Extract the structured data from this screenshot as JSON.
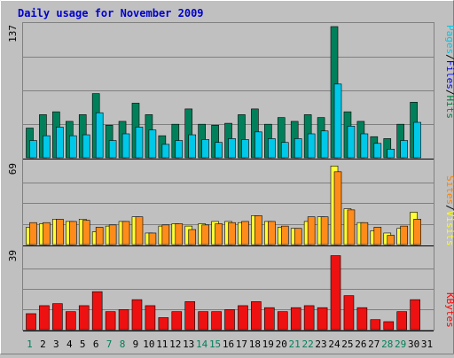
{
  "title": "Daily usage for November 2009",
  "colors": {
    "background": "#c0c0c0",
    "border_light": "#ffffff",
    "border_dark": "#808080",
    "grid": "#808080",
    "title": "#0000cc",
    "hits": "#008040",
    "hits_fill": "#00805a",
    "files": "#0000ff",
    "files_fill": "#00c8e8",
    "pages": "#00c8e8",
    "visits": "#ffff00",
    "visits_fill": "#ffff33",
    "sites": "#ff8000",
    "sites_fill": "#ff8c1a",
    "kbytes": "#ff0000",
    "kbytes_fill": "#ee1111",
    "separator": "#000000",
    "weekend_day": "#00805a",
    "weekday": "#000000"
  },
  "chart_data": [
    {
      "type": "bar",
      "name": "hits-files-pages",
      "ymax_label": "137",
      "ylim": [
        0,
        137
      ],
      "categories": [
        "1",
        "2",
        "3",
        "4",
        "5",
        "6",
        "7",
        "8",
        "9",
        "10",
        "11",
        "12",
        "13",
        "14",
        "15",
        "16",
        "17",
        "18",
        "19",
        "20",
        "21",
        "22",
        "23",
        "24",
        "25",
        "26",
        "27",
        "28",
        "29",
        "30",
        "31"
      ],
      "legend": [
        "Pages",
        "Files",
        "Hits"
      ],
      "series": [
        {
          "name": "Hits",
          "values": [
            31,
            45,
            48,
            38,
            45,
            67,
            34,
            38,
            57,
            45,
            23,
            35,
            51,
            35,
            34,
            36,
            45,
            51,
            35,
            42,
            38,
            45,
            42,
            137,
            48,
            38,
            22,
            20,
            35,
            58,
            0
          ]
        },
        {
          "name": "Files",
          "values": [
            18,
            23,
            32,
            23,
            24,
            47,
            18,
            25,
            32,
            29,
            14,
            18,
            24,
            19,
            16,
            20,
            19,
            27,
            20,
            16,
            20,
            25,
            28,
            77,
            33,
            25,
            15,
            9,
            18,
            37,
            0
          ]
        }
      ]
    },
    {
      "type": "bar",
      "name": "visits-sites",
      "ymax_label": "69",
      "ylim": [
        0,
        69
      ],
      "categories": [
        "1",
        "2",
        "3",
        "4",
        "5",
        "6",
        "7",
        "8",
        "9",
        "10",
        "11",
        "12",
        "13",
        "14",
        "15",
        "16",
        "17",
        "18",
        "19",
        "20",
        "21",
        "22",
        "23",
        "24",
        "25",
        "26",
        "27",
        "28",
        "29",
        "30",
        "31"
      ],
      "legend": [
        "Sites",
        "Visits"
      ],
      "series": [
        {
          "name": "Visits",
          "values": [
            15,
            18,
            22,
            20,
            22,
            11,
            16,
            20,
            24,
            10,
            16,
            18,
            16,
            18,
            20,
            20,
            19,
            25,
            20,
            15,
            14,
            20,
            24,
            68,
            31,
            19,
            12,
            10,
            14,
            28,
            0
          ]
        },
        {
          "name": "Sites",
          "values": [
            19,
            19,
            22,
            20,
            21,
            15,
            17,
            20,
            24,
            10,
            17,
            18,
            13,
            17,
            18,
            19,
            20,
            25,
            20,
            16,
            14,
            24,
            24,
            63,
            30,
            19,
            15,
            8,
            16,
            22,
            0
          ]
        }
      ]
    },
    {
      "type": "bar",
      "name": "kbytes",
      "ymax_label": "39",
      "ylim": [
        0,
        39
      ],
      "categories": [
        "1",
        "2",
        "3",
        "4",
        "5",
        "6",
        "7",
        "8",
        "9",
        "10",
        "11",
        "12",
        "13",
        "14",
        "15",
        "16",
        "17",
        "18",
        "19",
        "20",
        "21",
        "22",
        "23",
        "24",
        "25",
        "26",
        "27",
        "28",
        "29",
        "30",
        "31"
      ],
      "legend": [
        "KBytes"
      ],
      "series": [
        {
          "name": "KBytes",
          "values": [
            8,
            12,
            13,
            9,
            12,
            19,
            9,
            10,
            15,
            12,
            6,
            9,
            14,
            9,
            9,
            10,
            12,
            14,
            11,
            9,
            11,
            12,
            11,
            37,
            17,
            11,
            5,
            4,
            9,
            15,
            0
          ]
        }
      ]
    }
  ],
  "x_labels": [
    {
      "day": "1",
      "weekend": true
    },
    {
      "day": "2",
      "weekend": false
    },
    {
      "day": "3",
      "weekend": false
    },
    {
      "day": "4",
      "weekend": false
    },
    {
      "day": "5",
      "weekend": false
    },
    {
      "day": "6",
      "weekend": false
    },
    {
      "day": "7",
      "weekend": true
    },
    {
      "day": "8",
      "weekend": true
    },
    {
      "day": "9",
      "weekend": false
    },
    {
      "day": "10",
      "weekend": false
    },
    {
      "day": "11",
      "weekend": false
    },
    {
      "day": "12",
      "weekend": false
    },
    {
      "day": "13",
      "weekend": false
    },
    {
      "day": "14",
      "weekend": true
    },
    {
      "day": "15",
      "weekend": true
    },
    {
      "day": "16",
      "weekend": false
    },
    {
      "day": "17",
      "weekend": false
    },
    {
      "day": "18",
      "weekend": false
    },
    {
      "day": "19",
      "weekend": false
    },
    {
      "day": "20",
      "weekend": false
    },
    {
      "day": "21",
      "weekend": true
    },
    {
      "day": "22",
      "weekend": true
    },
    {
      "day": "23",
      "weekend": false
    },
    {
      "day": "24",
      "weekend": false
    },
    {
      "day": "25",
      "weekend": false
    },
    {
      "day": "26",
      "weekend": false
    },
    {
      "day": "27",
      "weekend": false
    },
    {
      "day": "28",
      "weekend": true
    },
    {
      "day": "29",
      "weekend": true
    },
    {
      "day": "30",
      "weekend": false
    },
    {
      "day": "31",
      "weekend": false
    }
  ],
  "legend_text": {
    "hits_files_pages": [
      "Pages",
      "/",
      "Files",
      "/",
      "Hits"
    ],
    "visits_sites": [
      "Sites",
      "/",
      "Visits"
    ],
    "kbytes": [
      "KBytes"
    ]
  }
}
